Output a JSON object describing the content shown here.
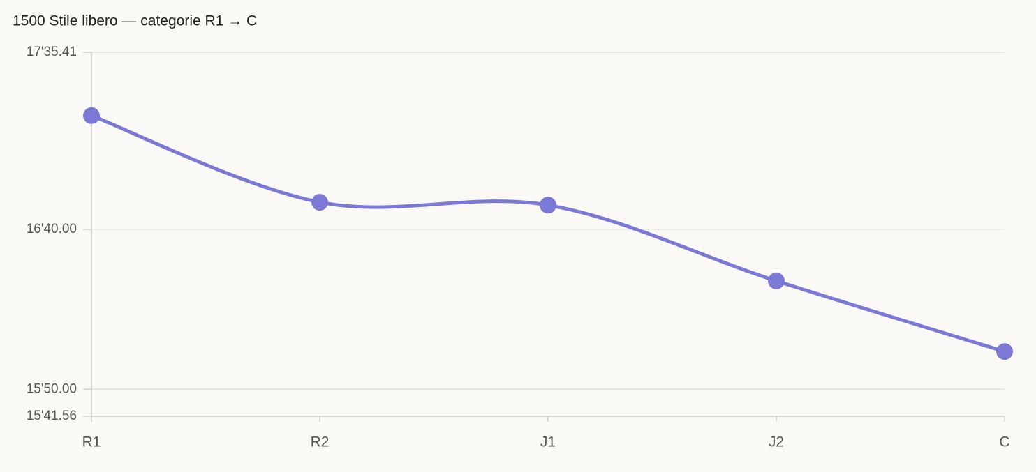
{
  "chart_data": {
    "type": "line",
    "title": "1500 Stile libero — categorie R1 → C",
    "categories": [
      "R1",
      "R2",
      "J1",
      "J2",
      "C"
    ],
    "series": [
      {
        "color": "#7b78d6",
        "values": [
          1035.6,
          1008.5,
          1007.6,
          983.9,
          961.8
        ]
      }
    ],
    "ylim": [
      941.56,
      1055.41
    ],
    "yticks": [
      {
        "value": 941.56,
        "label": "15'41.56"
      },
      {
        "value": 950,
        "label": "15'50.00"
      },
      {
        "value": 1000,
        "label": "16'40.00"
      },
      {
        "value": 1055.41,
        "label": "17'35.41"
      }
    ],
    "grid": true
  }
}
